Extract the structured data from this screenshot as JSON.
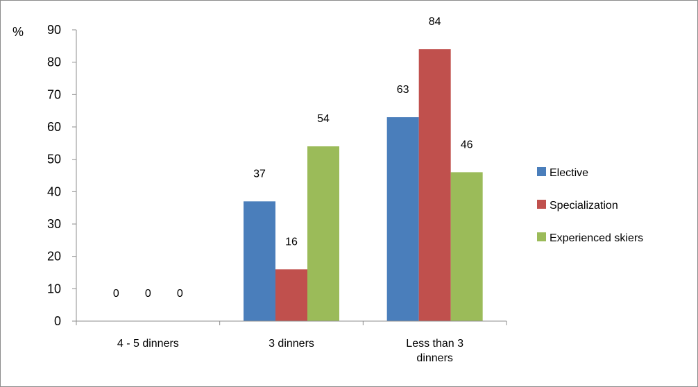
{
  "chart_data": {
    "type": "bar",
    "y_unit_label": "%",
    "ylim": [
      0,
      90
    ],
    "yticks": [
      0,
      10,
      20,
      30,
      40,
      50,
      60,
      70,
      80,
      90
    ],
    "categories": [
      "4 - 5 dinners",
      "3 dinners",
      "Less than 3 dinners"
    ],
    "category_label_lines": [
      [
        "4 - 5 dinners"
      ],
      [
        "3 dinners"
      ],
      [
        "Less than 3",
        "dinners"
      ]
    ],
    "series": [
      {
        "name": "Elective",
        "color": "#4a7ebb",
        "values": [
          0,
          37,
          63
        ]
      },
      {
        "name": "Specialization",
        "color": "#c0504d",
        "values": [
          0,
          16,
          84
        ]
      },
      {
        "name": "Experienced skiers",
        "color": "#9bbb59",
        "values": [
          0,
          54,
          46
        ]
      }
    ],
    "legend_position": "right",
    "grid": false
  }
}
